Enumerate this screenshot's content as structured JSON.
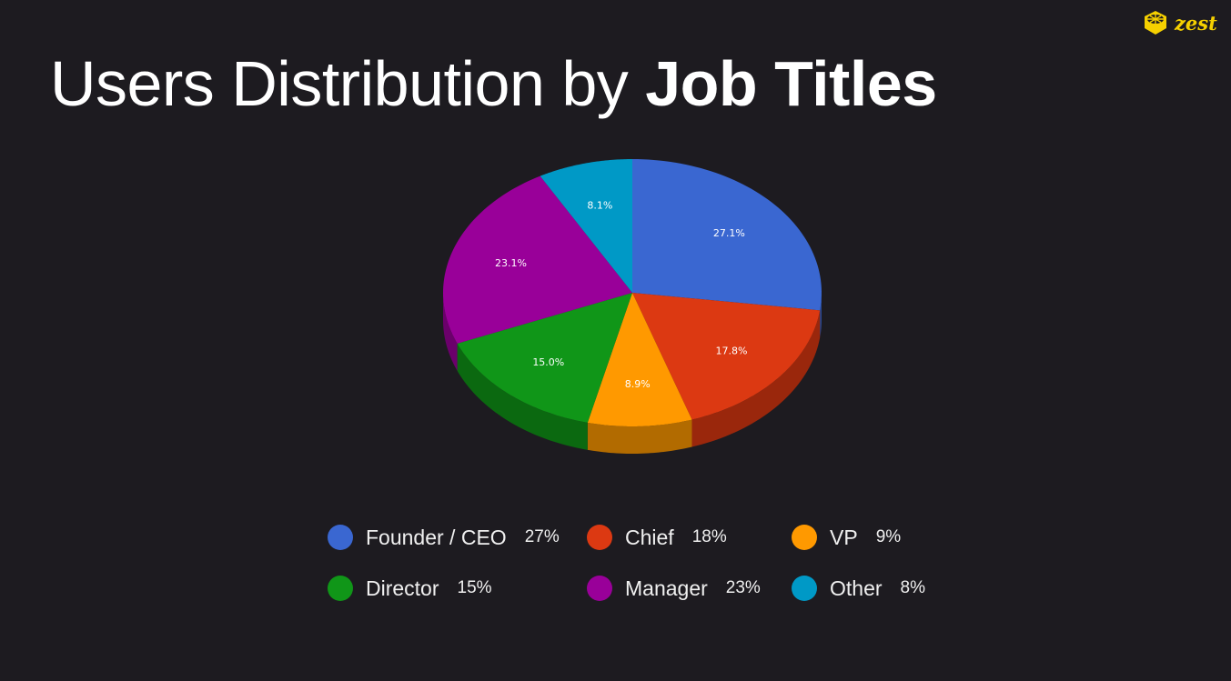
{
  "title": {
    "regular": "Users Distribution by",
    "bold": "Job Titles"
  },
  "logo": {
    "text": "zest",
    "icon": "cube-logo-icon",
    "color": "#f5d000"
  },
  "chart_data": {
    "type": "pie",
    "style": "3d",
    "start": "top",
    "direction": "clockwise",
    "categories": [
      "Founder / CEO",
      "Chief",
      "VP",
      "Director",
      "Manager",
      "Other"
    ],
    "values": [
      27.1,
      17.8,
      8.9,
      15.0,
      23.1,
      8.1
    ],
    "data_labels": [
      "27.1%",
      "17.8%",
      "8.9%",
      "15.0%",
      "23.1%",
      "8.1%"
    ],
    "colors": [
      "#3a67d1",
      "#dc3912",
      "#ff9900",
      "#109618",
      "#990099",
      "#0099c6"
    ],
    "legend_placement": "bottom",
    "legend": [
      {
        "label": "Founder / CEO",
        "pct": "27%"
      },
      {
        "label": "Chief",
        "pct": "18%"
      },
      {
        "label": "VP",
        "pct": "9%"
      },
      {
        "label": "Director",
        "pct": "15%"
      },
      {
        "label": "Manager",
        "pct": "23%"
      },
      {
        "label": "Other",
        "pct": "8%"
      }
    ]
  }
}
